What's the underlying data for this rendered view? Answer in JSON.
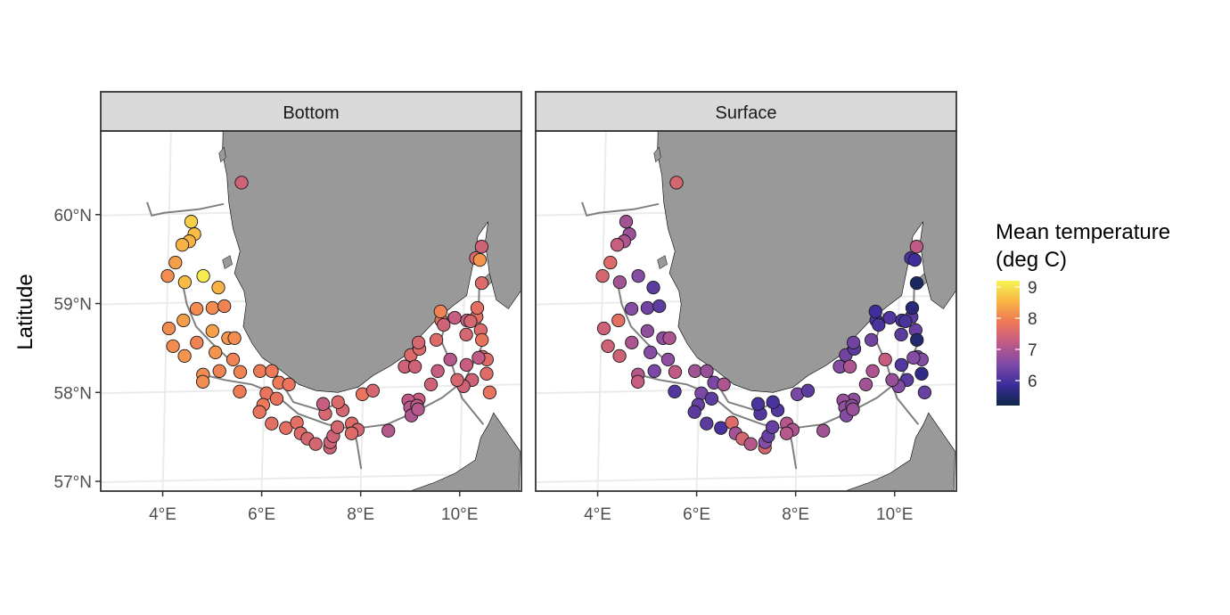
{
  "colors": {
    "land": "#999999",
    "panel_border": "#333333",
    "strip_fill": "#d9d9d9",
    "graticule": "#ebebeb",
    "route": "#7f7f7f",
    "point_outline": "#1a1a1a",
    "scale": [
      "#0d2748",
      "#3c2d9a",
      "#7e4aa6",
      "#c05a86",
      "#ee7758",
      "#f8b444",
      "#f5f553"
    ]
  },
  "chart_data": {
    "type": "scatter",
    "y_axis_title": "Latitude",
    "x_ticks": [
      "4°E",
      "6°E",
      "8°E",
      "10°E"
    ],
    "y_ticks": [
      "57°N",
      "58°N",
      "59°N",
      "60°N"
    ],
    "xlim": [
      2.7,
      11.2
    ],
    "ylim": [
      56.85,
      60.9
    ],
    "legend": {
      "title_line1": "Mean temperature",
      "title_line2": "(deg C)",
      "ticks": [
        "6",
        "7",
        "8",
        "9"
      ],
      "range": [
        5.2,
        9.2
      ]
    },
    "panels": [
      {
        "name": "Bottom",
        "points": [
          [
            5.45,
            60.32,
            7.4
          ],
          [
            4.45,
            59.88,
            8.8
          ],
          [
            4.52,
            59.74,
            8.6
          ],
          [
            4.42,
            59.66,
            8.5
          ],
          [
            4.28,
            59.62,
            8.5
          ],
          [
            4.15,
            59.42,
            8.3
          ],
          [
            4.0,
            59.27,
            8.1
          ],
          [
            4.35,
            59.2,
            8.6
          ],
          [
            4.72,
            59.27,
            9.1
          ],
          [
            5.03,
            59.14,
            8.5
          ],
          [
            4.6,
            58.9,
            8.1
          ],
          [
            4.92,
            58.91,
            8.1
          ],
          [
            5.16,
            58.93,
            8.0
          ],
          [
            4.05,
            58.68,
            8.1
          ],
          [
            4.34,
            58.77,
            8.3
          ],
          [
            4.62,
            58.52,
            8.0
          ],
          [
            4.14,
            58.48,
            8.1
          ],
          [
            4.38,
            58.37,
            8.2
          ],
          [
            4.93,
            58.65,
            8.3
          ],
          [
            5.25,
            58.57,
            8.2
          ],
          [
            5.38,
            58.57,
            8.1
          ],
          [
            5.0,
            58.41,
            8.2
          ],
          [
            5.36,
            58.33,
            8.0
          ],
          [
            4.76,
            58.16,
            8.1
          ],
          [
            4.76,
            58.08,
            8.1
          ],
          [
            5.09,
            58.2,
            8.0
          ],
          [
            5.51,
            58.19,
            8.0
          ],
          [
            5.51,
            57.97,
            7.9
          ],
          [
            5.91,
            58.2,
            7.9
          ],
          [
            6.15,
            58.2,
            7.9
          ],
          [
            6.05,
            57.95,
            7.8
          ],
          [
            5.99,
            57.82,
            7.9
          ],
          [
            5.92,
            57.74,
            7.8
          ],
          [
            6.26,
            57.89,
            7.8
          ],
          [
            6.3,
            58.07,
            7.9
          ],
          [
            6.5,
            58.05,
            7.8
          ],
          [
            6.17,
            57.61,
            7.7
          ],
          [
            6.46,
            57.56,
            7.7
          ],
          [
            6.68,
            57.62,
            7.7
          ],
          [
            6.76,
            57.5,
            7.6
          ],
          [
            6.9,
            57.44,
            7.5
          ],
          [
            7.07,
            57.38,
            7.5
          ],
          [
            7.36,
            57.34,
            7.4
          ],
          [
            7.36,
            57.4,
            7.4
          ],
          [
            7.42,
            57.47,
            7.4
          ],
          [
            7.5,
            57.57,
            7.5
          ],
          [
            7.6,
            57.76,
            7.5
          ],
          [
            7.5,
            57.85,
            7.6
          ],
          [
            7.25,
            57.72,
            7.5
          ],
          [
            7.2,
            57.83,
            7.3
          ],
          [
            7.79,
            57.61,
            7.6
          ],
          [
            7.91,
            57.54,
            7.5
          ],
          [
            7.79,
            57.5,
            7.6
          ],
          [
            7.99,
            57.94,
            7.8
          ],
          [
            8.2,
            57.98,
            7.5
          ],
          [
            8.53,
            57.53,
            7.1
          ],
          [
            8.84,
            58.25,
            7.8
          ],
          [
            8.83,
            58.25,
            7.4
          ],
          [
            8.95,
            58.38,
            7.6
          ],
          [
            9.12,
            58.45,
            7.6
          ],
          [
            9.1,
            58.52,
            7.5
          ],
          [
            9.04,
            58.25,
            7.4
          ],
          [
            9.46,
            58.55,
            7.6
          ],
          [
            9.55,
            58.77,
            7.7
          ],
          [
            9.53,
            58.87,
            8.0
          ],
          [
            9.6,
            58.72,
            7.4
          ],
          [
            9.82,
            58.8,
            7.3
          ],
          [
            10.07,
            58.77,
            7.3
          ],
          [
            10.26,
            58.81,
            7.7
          ],
          [
            10.27,
            58.91,
            7.7
          ],
          [
            10.14,
            58.76,
            7.5
          ],
          [
            10.06,
            58.61,
            7.5
          ],
          [
            10.35,
            58.66,
            7.6
          ],
          [
            10.38,
            58.55,
            7.8
          ],
          [
            10.4,
            58.36,
            7.6
          ],
          [
            10.49,
            58.33,
            7.6
          ],
          [
            10.49,
            58.17,
            7.6
          ],
          [
            10.56,
            57.96,
            7.8
          ],
          [
            10.32,
            58.35,
            7.2
          ],
          [
            10.08,
            58.27,
            7.3
          ],
          [
            10.2,
            58.1,
            7.4
          ],
          [
            10.03,
            58.03,
            7.4
          ],
          [
            9.9,
            58.1,
            7.5
          ],
          [
            9.75,
            58.33,
            7.1
          ],
          [
            9.5,
            58.2,
            7.3
          ],
          [
            9.37,
            58.05,
            7.4
          ],
          [
            9.13,
            57.88,
            7.3
          ],
          [
            8.92,
            57.87,
            7.2
          ],
          [
            8.96,
            57.79,
            7.1
          ],
          [
            9.1,
            57.81,
            7.2
          ],
          [
            8.99,
            57.7,
            7.0
          ],
          [
            9.12,
            57.77,
            7.1
          ],
          [
            10.33,
            59.6,
            7.4
          ],
          [
            10.22,
            59.47,
            7.6
          ],
          [
            10.3,
            59.45,
            8.2
          ],
          [
            10.35,
            59.19,
            7.6
          ]
        ]
      },
      {
        "name": "Surface",
        "points": [
          [
            5.45,
            60.32,
            7.5
          ],
          [
            4.45,
            59.88,
            6.9
          ],
          [
            4.52,
            59.74,
            6.8
          ],
          [
            4.42,
            59.66,
            7.0
          ],
          [
            4.28,
            59.62,
            7.3
          ],
          [
            4.15,
            59.42,
            7.6
          ],
          [
            4.0,
            59.27,
            7.5
          ],
          [
            4.35,
            59.2,
            6.9
          ],
          [
            4.72,
            59.27,
            6.6
          ],
          [
            5.03,
            59.14,
            6.2
          ],
          [
            4.6,
            58.9,
            6.6
          ],
          [
            4.92,
            58.91,
            6.4
          ],
          [
            5.16,
            58.93,
            6.2
          ],
          [
            4.05,
            58.68,
            7.4
          ],
          [
            4.34,
            58.77,
            7.7
          ],
          [
            4.62,
            58.52,
            7.0
          ],
          [
            4.14,
            58.48,
            7.4
          ],
          [
            4.38,
            58.37,
            7.4
          ],
          [
            4.93,
            58.65,
            6.7
          ],
          [
            5.25,
            58.57,
            6.7
          ],
          [
            5.38,
            58.57,
            7.0
          ],
          [
            5.0,
            58.41,
            6.6
          ],
          [
            5.36,
            58.33,
            6.7
          ],
          [
            4.76,
            58.16,
            7.1
          ],
          [
            4.76,
            58.08,
            7.3
          ],
          [
            5.09,
            58.2,
            6.5
          ],
          [
            5.51,
            58.19,
            7.2
          ],
          [
            5.51,
            57.97,
            6.1
          ],
          [
            5.91,
            58.2,
            6.9
          ],
          [
            6.15,
            58.2,
            6.8
          ],
          [
            6.05,
            57.95,
            6.5
          ],
          [
            5.99,
            57.82,
            6.3
          ],
          [
            5.92,
            57.74,
            6.2
          ],
          [
            6.26,
            57.89,
            6.2
          ],
          [
            6.3,
            58.07,
            6.5
          ],
          [
            6.5,
            58.05,
            7.0
          ],
          [
            6.17,
            57.61,
            6.2
          ],
          [
            6.46,
            57.56,
            6.0
          ],
          [
            6.68,
            57.62,
            7.6
          ],
          [
            6.76,
            57.5,
            6.9
          ],
          [
            6.9,
            57.44,
            7.5
          ],
          [
            7.07,
            57.38,
            7.1
          ],
          [
            7.36,
            57.34,
            7.5
          ],
          [
            7.36,
            57.4,
            6.6
          ],
          [
            7.42,
            57.47,
            6.3
          ],
          [
            7.5,
            57.57,
            6.3
          ],
          [
            7.6,
            57.76,
            6.1
          ],
          [
            7.5,
            57.85,
            6.0
          ],
          [
            7.25,
            57.72,
            6.1
          ],
          [
            7.2,
            57.83,
            6.0
          ],
          [
            7.79,
            57.61,
            7.1
          ],
          [
            7.91,
            57.54,
            7.0
          ],
          [
            7.79,
            57.5,
            7.1
          ],
          [
            7.99,
            57.94,
            6.5
          ],
          [
            8.2,
            57.98,
            6.2
          ],
          [
            8.53,
            57.53,
            6.9
          ],
          [
            8.84,
            58.25,
            6.9
          ],
          [
            8.83,
            58.25,
            6.6
          ],
          [
            8.95,
            58.38,
            6.4
          ],
          [
            9.12,
            58.45,
            6.2
          ],
          [
            9.1,
            58.52,
            6.4
          ],
          [
            9.04,
            58.25,
            7.0
          ],
          [
            9.46,
            58.55,
            6.4
          ],
          [
            9.55,
            58.77,
            6.0
          ],
          [
            9.53,
            58.87,
            5.9
          ],
          [
            9.6,
            58.72,
            6.0
          ],
          [
            9.82,
            58.8,
            6.1
          ],
          [
            10.07,
            58.77,
            6.0
          ],
          [
            10.26,
            58.81,
            6.2
          ],
          [
            10.27,
            58.91,
            5.6
          ],
          [
            10.14,
            58.76,
            6.0
          ],
          [
            10.06,
            58.61,
            6.2
          ],
          [
            10.35,
            58.66,
            6.3
          ],
          [
            10.38,
            58.55,
            5.5
          ],
          [
            10.4,
            58.36,
            6.4
          ],
          [
            10.49,
            58.33,
            6.6
          ],
          [
            10.49,
            58.17,
            5.7
          ],
          [
            10.56,
            57.96,
            6.3
          ],
          [
            10.32,
            58.35,
            6.6
          ],
          [
            10.08,
            58.27,
            6.1
          ],
          [
            10.2,
            58.1,
            6.2
          ],
          [
            10.03,
            58.03,
            6.6
          ],
          [
            9.9,
            58.1,
            6.8
          ],
          [
            9.75,
            58.33,
            7.3
          ],
          [
            9.5,
            58.2,
            7.0
          ],
          [
            9.37,
            58.05,
            6.9
          ],
          [
            9.13,
            57.88,
            6.7
          ],
          [
            8.92,
            57.87,
            6.8
          ],
          [
            8.96,
            57.79,
            6.7
          ],
          [
            9.1,
            57.81,
            6.7
          ],
          [
            8.99,
            57.7,
            6.6
          ],
          [
            9.12,
            57.77,
            6.8
          ],
          [
            10.33,
            59.6,
            7.2
          ],
          [
            10.22,
            59.47,
            6.0
          ],
          [
            10.3,
            59.45,
            5.9
          ],
          [
            10.35,
            59.19,
            5.4
          ]
        ]
      }
    ]
  }
}
